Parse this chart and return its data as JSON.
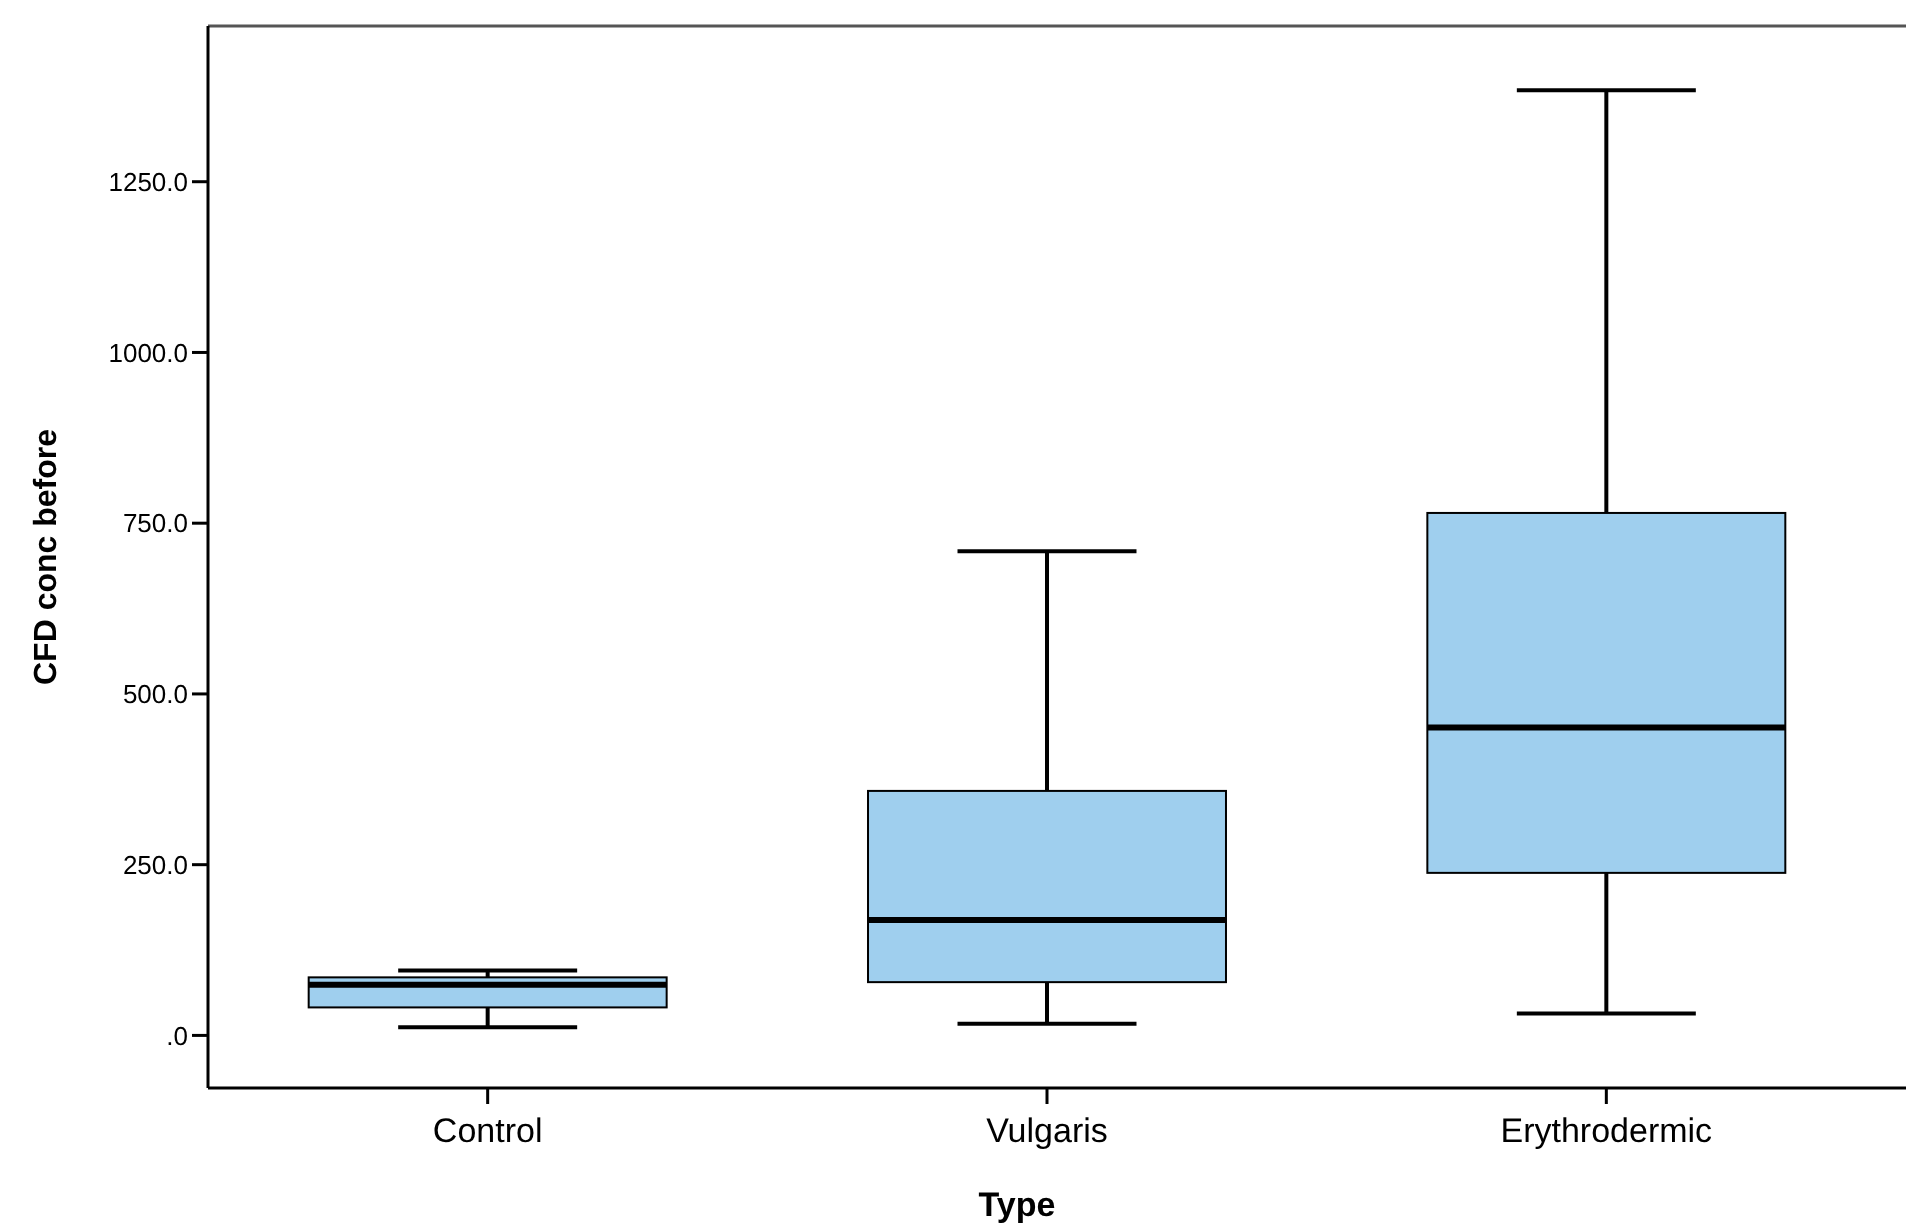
{
  "chart_data": {
    "type": "box",
    "xlabel": "Type",
    "ylabel": "CFD conc before",
    "categories": [
      "Control",
      "Vulgaris",
      "Erythrodermic"
    ],
    "color": "#9fcfee",
    "boxes": [
      {
        "low": 12,
        "q1": 41,
        "median": 74,
        "q3": 85,
        "high": 95
      },
      {
        "low": 17,
        "q1": 78,
        "median": 169,
        "q3": 358,
        "high": 709
      },
      {
        "low": 32,
        "q1": 238,
        "median": 451,
        "q3": 765,
        "high": 1384
      }
    ],
    "ylim": [
      -77,
      1478
    ],
    "yticks": [
      {
        "value": 0,
        "label": ".0"
      },
      {
        "value": 250,
        "label": "250.0"
      },
      {
        "value": 500,
        "label": "500.0"
      },
      {
        "value": 750,
        "label": "750.0"
      },
      {
        "value": 1000,
        "label": "1000.0"
      },
      {
        "value": 1250,
        "label": "1250.0"
      }
    ],
    "grid": false
  }
}
